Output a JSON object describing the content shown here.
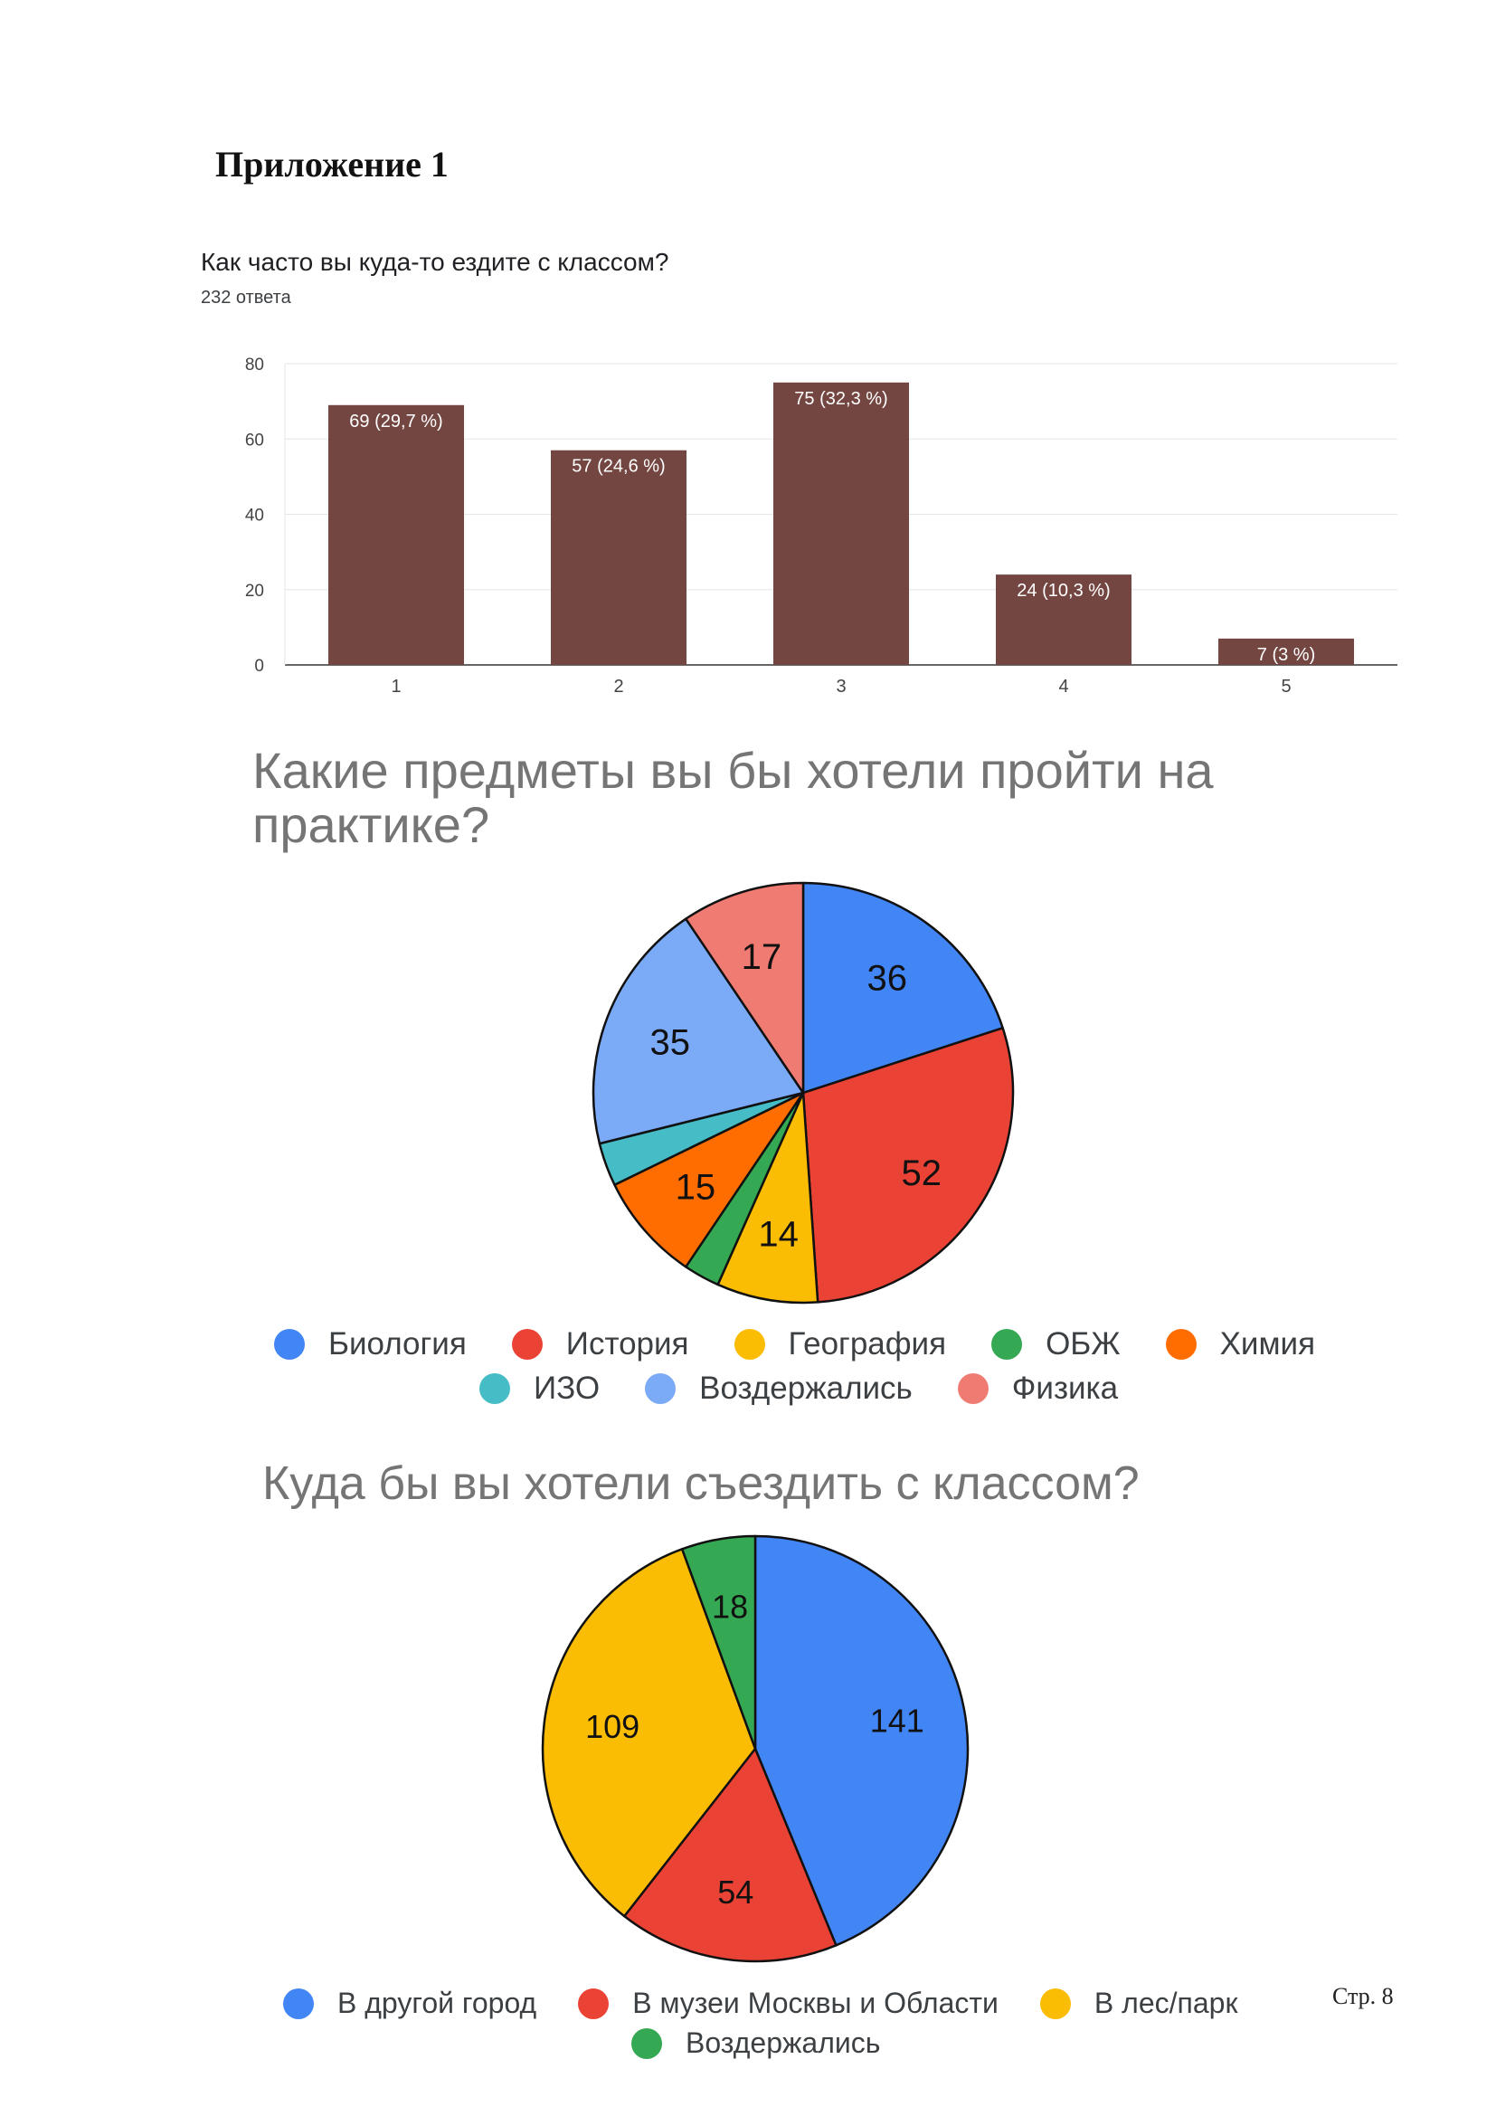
{
  "heading": "Приложение 1",
  "footer": {
    "page_number": "Стр. 8"
  },
  "charts": {
    "frequency": {
      "question": "Как часто вы куда-то ездите с классом?",
      "responses": "232 ответа",
      "bar_color": "#744642"
    },
    "subjects": {
      "title": "Какие предметы вы бы хотели пройти на практике?"
    },
    "destinations": {
      "title": "Куда бы вы хотели съездить с классом?"
    }
  },
  "chart_data": [
    {
      "type": "bar",
      "title": "Как часто вы куда-то ездите с классом?",
      "categories": [
        "1",
        "2",
        "3",
        "4",
        "5"
      ],
      "values": [
        69,
        57,
        75,
        24,
        7
      ],
      "data_labels": [
        "69 (29,7 %)",
        "57 (24,6 %)",
        "75 (32,3 %)",
        "24 (10,3 %)",
        "7 (3 %)"
      ],
      "yticks": [
        "0",
        "20",
        "40",
        "60",
        "80"
      ],
      "ylim": [
        0,
        80
      ],
      "grid": true,
      "color": "#744642"
    },
    {
      "type": "pie",
      "title": "Какие предметы вы бы хотели пройти на практике?",
      "categories": [
        "Биология",
        "История",
        "География",
        "ОБЖ",
        "Химия",
        "ИЗО",
        "Воздержались",
        "Физика"
      ],
      "values": [
        36,
        52,
        14,
        5,
        15,
        6,
        35,
        17
      ],
      "labels": [
        "36",
        "52",
        "14",
        "",
        "15",
        "",
        "35",
        "17"
      ],
      "colors": [
        "#4285f4",
        "#ea4335",
        "#fbbc04",
        "#34a853",
        "#ff6d01",
        "#46bdc6",
        "#7baaf7",
        "#f07b72"
      ],
      "legend_rows": [
        [
          0,
          1,
          2,
          3,
          4
        ],
        [
          5,
          6,
          7
        ]
      ],
      "legend": "bottom"
    },
    {
      "type": "pie",
      "title": "Куда бы вы хотели съездить с классом?",
      "categories": [
        "В другой город",
        "В музеи Москвы и Области",
        "В лес/парк",
        "Воздержались"
      ],
      "values": [
        141,
        54,
        109,
        18
      ],
      "labels": [
        "141",
        "54",
        "109",
        "18"
      ],
      "colors": [
        "#4285f4",
        "#ea4335",
        "#fbbc04",
        "#34a853"
      ],
      "legend_rows": [
        [
          0,
          1,
          2
        ],
        [
          3
        ]
      ],
      "legend": "bottom"
    }
  ]
}
